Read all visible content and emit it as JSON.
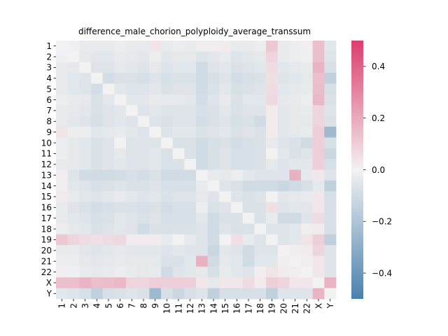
{
  "chart_data": {
    "type": "heatmap",
    "title": "difference_male_chorion_polyploidy_average_transsum",
    "xlabel": "",
    "ylabel": "",
    "x_categories": [
      "1",
      "2",
      "3",
      "4",
      "5",
      "6",
      "7",
      "8",
      "9",
      "10",
      "11",
      "12",
      "13",
      "14",
      "15",
      "16",
      "17",
      "18",
      "19",
      "20",
      "21",
      "22",
      "X",
      "Y"
    ],
    "y_categories": [
      "1",
      "2",
      "3",
      "4",
      "5",
      "6",
      "7",
      "8",
      "9",
      "10",
      "11",
      "12",
      "13",
      "14",
      "15",
      "16",
      "17",
      "18",
      "19",
      "20",
      "21",
      "22",
      "X",
      "Y"
    ],
    "vmin": -0.5,
    "vmax": 0.5,
    "colorbar_ticks": [
      0.4,
      0.2,
      0.0,
      -0.2,
      -0.4
    ],
    "colorbar_tick_labels": [
      "0.4",
      "0.2",
      "0.0",
      "−0.2",
      "−0.4"
    ],
    "colormap": {
      "low": "#4a80ad",
      "mid": "#f2f2f2",
      "high": "#dc3d6e"
    },
    "values": [
      [
        0.0,
        -0.01,
        -0.03,
        -0.03,
        -0.03,
        -0.02,
        -0.03,
        -0.03,
        0.04,
        -0.03,
        -0.02,
        -0.03,
        0.01,
        0.01,
        0.02,
        -0.03,
        -0.03,
        -0.02,
        0.12,
        -0.03,
        -0.02,
        0.01,
        0.14,
        -0.05
      ],
      [
        -0.01,
        0.0,
        -0.04,
        -0.05,
        -0.05,
        -0.03,
        -0.04,
        -0.05,
        -0.02,
        -0.05,
        -0.04,
        -0.04,
        -0.06,
        -0.05,
        -0.03,
        -0.06,
        -0.05,
        -0.04,
        0.08,
        -0.03,
        -0.02,
        -0.01,
        0.14,
        -0.06
      ],
      [
        -0.03,
        -0.04,
        0.0,
        -0.06,
        -0.06,
        -0.04,
        -0.05,
        -0.06,
        -0.04,
        -0.06,
        -0.05,
        -0.05,
        -0.1,
        -0.06,
        -0.05,
        -0.07,
        -0.06,
        -0.05,
        0.06,
        -0.05,
        -0.04,
        -0.03,
        0.17,
        -0.08
      ],
      [
        -0.03,
        -0.05,
        -0.06,
        0.0,
        -0.09,
        -0.07,
        -0.07,
        -0.08,
        -0.06,
        -0.08,
        -0.07,
        -0.07,
        -0.1,
        -0.08,
        -0.06,
        -0.09,
        -0.08,
        -0.07,
        0.05,
        -0.06,
        -0.05,
        -0.04,
        0.14,
        -0.15
      ],
      [
        -0.03,
        -0.05,
        -0.06,
        -0.09,
        0.0,
        -0.05,
        -0.06,
        -0.06,
        -0.05,
        -0.07,
        -0.06,
        -0.06,
        -0.1,
        -0.07,
        -0.05,
        -0.08,
        -0.07,
        -0.06,
        0.06,
        -0.05,
        -0.04,
        -0.03,
        0.15,
        -0.08
      ],
      [
        -0.02,
        -0.03,
        -0.04,
        -0.07,
        -0.05,
        0.0,
        -0.05,
        -0.05,
        -0.03,
        -0.04,
        -0.04,
        -0.05,
        -0.09,
        -0.06,
        -0.03,
        -0.07,
        -0.05,
        -0.05,
        0.07,
        -0.04,
        -0.03,
        -0.02,
        0.16,
        -0.07
      ],
      [
        -0.03,
        -0.04,
        -0.05,
        -0.07,
        -0.06,
        -0.05,
        0.0,
        -0.06,
        -0.05,
        -0.06,
        -0.06,
        -0.06,
        -0.08,
        -0.07,
        -0.05,
        -0.07,
        -0.06,
        -0.06,
        0.02,
        -0.05,
        -0.04,
        -0.03,
        0.08,
        -0.06
      ],
      [
        -0.03,
        -0.05,
        -0.06,
        -0.08,
        -0.06,
        -0.05,
        -0.06,
        0.0,
        -0.06,
        -0.07,
        -0.06,
        -0.06,
        -0.09,
        -0.07,
        -0.06,
        -0.08,
        -0.07,
        -0.1,
        0.02,
        -0.05,
        -0.04,
        -0.04,
        0.08,
        -0.07
      ],
      [
        0.04,
        -0.02,
        -0.02,
        -0.05,
        -0.04,
        -0.03,
        -0.05,
        -0.06,
        0.0,
        -0.06,
        -0.05,
        -0.05,
        -0.07,
        -0.06,
        -0.05,
        -0.07,
        -0.06,
        -0.07,
        0.02,
        -0.05,
        -0.04,
        -0.03,
        0.1,
        -0.25
      ],
      [
        -0.02,
        -0.04,
        -0.05,
        -0.07,
        -0.06,
        0.0,
        -0.06,
        -0.06,
        -0.06,
        0.0,
        -0.07,
        -0.07,
        -0.1,
        -0.08,
        -0.07,
        -0.09,
        -0.08,
        -0.07,
        -0.03,
        -0.06,
        -0.07,
        -0.1,
        0.1,
        -0.08
      ],
      [
        -0.02,
        -0.04,
        -0.05,
        -0.07,
        -0.06,
        -0.04,
        -0.06,
        -0.06,
        -0.05,
        -0.07,
        0.0,
        -0.07,
        -0.1,
        -0.08,
        -0.06,
        -0.08,
        -0.08,
        -0.07,
        0.0,
        -0.05,
        -0.07,
        -0.06,
        0.1,
        -0.12
      ],
      [
        -0.03,
        -0.04,
        -0.05,
        -0.07,
        -0.06,
        -0.05,
        -0.06,
        -0.06,
        -0.05,
        -0.07,
        -0.07,
        0.0,
        -0.1,
        -0.08,
        -0.06,
        -0.08,
        -0.08,
        -0.07,
        -0.04,
        -0.06,
        -0.05,
        -0.05,
        0.1,
        -0.08
      ],
      [
        0.01,
        -0.06,
        -0.1,
        -0.1,
        -0.1,
        -0.09,
        -0.08,
        -0.09,
        -0.07,
        -0.1,
        -0.1,
        -0.1,
        0.0,
        -0.03,
        -0.04,
        -0.02,
        -0.05,
        -0.06,
        -0.06,
        -0.06,
        0.18,
        -0.04,
        0.03,
        -0.06
      ],
      [
        0.01,
        -0.05,
        -0.06,
        -0.08,
        -0.07,
        -0.06,
        -0.07,
        -0.07,
        -0.06,
        -0.08,
        -0.08,
        -0.08,
        -0.03,
        0.0,
        -0.06,
        -0.07,
        -0.1,
        -0.1,
        -0.1,
        -0.12,
        -0.1,
        -0.08,
        -0.04,
        -0.15
      ],
      [
        0.02,
        -0.03,
        -0.05,
        -0.06,
        -0.05,
        -0.03,
        -0.05,
        -0.06,
        -0.05,
        -0.07,
        -0.06,
        -0.06,
        -0.04,
        -0.06,
        0.0,
        -0.06,
        -0.07,
        -0.06,
        0.0,
        -0.05,
        -0.04,
        -0.03,
        0.03,
        -0.08
      ],
      [
        -0.03,
        -0.06,
        -0.07,
        -0.09,
        -0.08,
        -0.07,
        -0.07,
        -0.08,
        -0.07,
        -0.09,
        -0.08,
        -0.08,
        -0.02,
        -0.07,
        -0.06,
        0.0,
        -0.07,
        -0.07,
        0.05,
        -0.06,
        -0.05,
        -0.05,
        0.03,
        -0.08
      ],
      [
        -0.03,
        -0.05,
        -0.06,
        -0.08,
        -0.07,
        -0.05,
        -0.06,
        -0.07,
        -0.06,
        -0.08,
        -0.08,
        -0.08,
        -0.05,
        -0.1,
        -0.07,
        -0.07,
        0.0,
        -0.07,
        -0.03,
        -0.1,
        -0.1,
        -0.06,
        0.06,
        -0.08
      ],
      [
        -0.02,
        -0.04,
        -0.05,
        -0.07,
        -0.06,
        -0.05,
        -0.06,
        -0.1,
        -0.07,
        -0.07,
        -0.07,
        -0.07,
        -0.06,
        -0.1,
        -0.06,
        -0.07,
        -0.07,
        0.0,
        -0.06,
        -0.06,
        -0.05,
        0.01,
        0.02,
        -0.08
      ],
      [
        0.12,
        0.08,
        0.06,
        0.05,
        0.06,
        0.07,
        0.02,
        0.02,
        0.02,
        -0.03,
        0.0,
        -0.04,
        -0.06,
        -0.1,
        0.0,
        0.05,
        -0.03,
        -0.06,
        0.0,
        -0.06,
        -0.05,
        0.04,
        0.1,
        -0.15
      ],
      [
        -0.03,
        -0.03,
        -0.05,
        -0.06,
        -0.05,
        -0.04,
        -0.05,
        -0.05,
        -0.05,
        -0.06,
        -0.05,
        -0.06,
        -0.06,
        -0.12,
        -0.05,
        -0.06,
        -0.1,
        -0.06,
        -0.06,
        0.0,
        0.01,
        0.02,
        0.08,
        -0.06
      ],
      [
        -0.02,
        -0.02,
        -0.04,
        -0.05,
        -0.04,
        -0.03,
        -0.04,
        -0.04,
        -0.04,
        -0.07,
        -0.07,
        -0.05,
        0.18,
        -0.1,
        -0.04,
        -0.05,
        -0.1,
        -0.05,
        -0.05,
        0.01,
        0.0,
        0.01,
        0.03,
        -0.06
      ],
      [
        0.01,
        -0.01,
        -0.03,
        -0.04,
        -0.03,
        -0.02,
        -0.03,
        -0.04,
        -0.03,
        -0.1,
        -0.06,
        -0.05,
        -0.04,
        -0.08,
        -0.03,
        -0.05,
        -0.06,
        0.01,
        0.04,
        0.02,
        0.01,
        0.0,
        0.03,
        -0.06
      ],
      [
        0.14,
        0.14,
        0.17,
        0.14,
        0.15,
        0.16,
        0.08,
        0.08,
        0.1,
        0.1,
        0.1,
        0.1,
        0.03,
        -0.04,
        0.03,
        0.03,
        0.06,
        0.02,
        0.1,
        0.08,
        0.03,
        0.03,
        0.0,
        0.17
      ],
      [
        -0.05,
        -0.06,
        -0.08,
        -0.15,
        -0.08,
        -0.07,
        -0.06,
        -0.07,
        -0.25,
        -0.08,
        -0.12,
        -0.08,
        -0.06,
        -0.15,
        -0.08,
        -0.08,
        -0.08,
        -0.08,
        -0.15,
        -0.06,
        -0.06,
        -0.06,
        0.17,
        0.0
      ]
    ]
  }
}
